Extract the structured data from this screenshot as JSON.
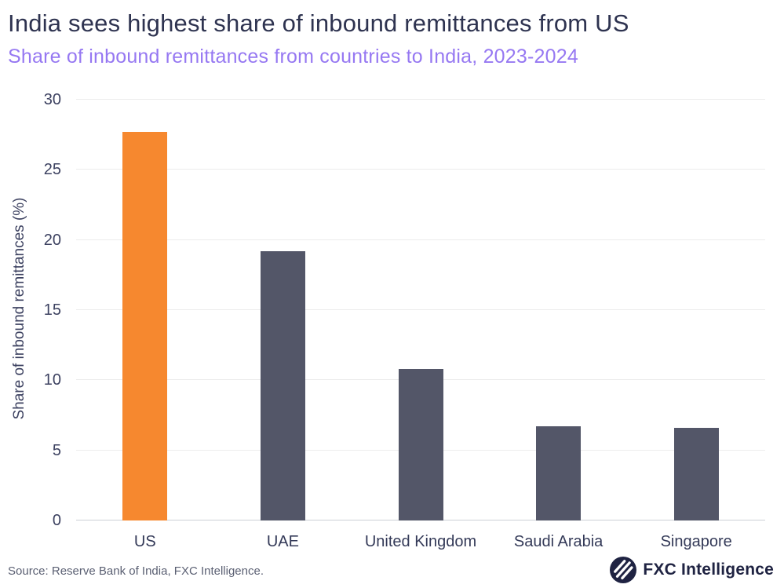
{
  "chart_data": {
    "type": "bar",
    "title": "India sees highest share of inbound remittances from US",
    "subtitle": "Share of inbound remittances from countries to India, 2023-2024",
    "categories": [
      "US",
      "UAE",
      "United Kingdom",
      "Saudi Arabia",
      "Singapore"
    ],
    "values": [
      27.7,
      19.2,
      10.8,
      6.7,
      6.6
    ],
    "bar_colors": [
      "#f6882f",
      "#535668",
      "#535668",
      "#535668",
      "#535668"
    ],
    "highlight_color": "#f6882f",
    "default_bar_color": "#535668",
    "xlabel": "",
    "ylabel": "Share of inbound remittances (%)",
    "ylim": [
      0,
      30
    ],
    "yticks": [
      0,
      5,
      10,
      15,
      20,
      25,
      30
    ],
    "grid": "horizontal",
    "legend": "none"
  },
  "footer": {
    "source": "Source: Reserve Bank of India, FXC Intelligence.",
    "brand": "FXC Intelligence",
    "logo_icon": "fxc-intelligence-logo"
  },
  "colors": {
    "title": "#2e3350",
    "subtitle": "#9678f2",
    "axis_text": "#3c4160",
    "gridline": "#ececec",
    "axis_line": "#ccd0d6",
    "source_text": "#5b6073",
    "brand_navy": "#1f2342",
    "background": "#ffffff"
  }
}
